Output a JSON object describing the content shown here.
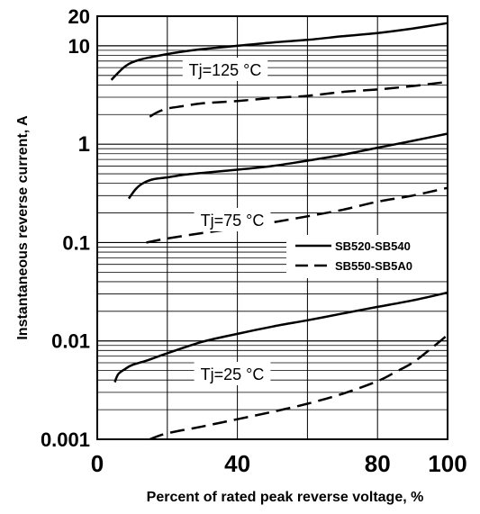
{
  "chart_data": {
    "type": "line",
    "title": "",
    "xlabel": "Percent of rated peak reverse voltage, %",
    "ylabel": "Instantaneous reverse current, A",
    "xlim": [
      0,
      100
    ],
    "ylim": [
      0.001,
      20
    ],
    "yscale": "log",
    "grid": true,
    "legend_position": "right-middle",
    "x_ticks": [
      "0",
      "40",
      "80",
      "100"
    ],
    "y_ticks": [
      "0.001",
      "0.01",
      "0.1",
      "1",
      "10",
      "20"
    ],
    "legend": [
      {
        "name": "SB520-SB540",
        "style": "solid"
      },
      {
        "name": "SB550-SB5A0",
        "style": "dashed"
      }
    ],
    "annotations": [
      "Tj=125 °C",
      "Tj=75 °C",
      "Tj=25 °C"
    ],
    "series": [
      {
        "group": "Tj=125 °C",
        "style": "solid",
        "x": [
          4,
          8,
          12,
          18,
          25,
          32,
          40,
          50,
          60,
          70,
          80,
          90,
          100
        ],
        "y": [
          4.5,
          6.2,
          7.2,
          8.0,
          8.8,
          9.4,
          10.0,
          10.8,
          11.5,
          12.5,
          13.5,
          15.0,
          17.0
        ]
      },
      {
        "group": "Tj=125 °C",
        "style": "dashed",
        "x": [
          15,
          17,
          20,
          25,
          30,
          40,
          50,
          60,
          70,
          80,
          90,
          100
        ],
        "y": [
          1.9,
          2.1,
          2.3,
          2.45,
          2.6,
          2.75,
          2.95,
          3.1,
          3.4,
          3.6,
          3.9,
          4.3
        ]
      },
      {
        "group": "Tj=75 °C",
        "style": "solid",
        "x": [
          9,
          11,
          13,
          16,
          20,
          25,
          30,
          40,
          50,
          60,
          70,
          80,
          90,
          100
        ],
        "y": [
          0.28,
          0.35,
          0.4,
          0.44,
          0.46,
          0.49,
          0.51,
          0.55,
          0.6,
          0.68,
          0.78,
          0.92,
          1.08,
          1.28
        ]
      },
      {
        "group": "Tj=75 °C",
        "style": "dashed",
        "x": [
          14,
          20,
          30,
          40,
          50,
          60,
          70,
          80,
          90,
          100
        ],
        "y": [
          0.1,
          0.11,
          0.125,
          0.14,
          0.16,
          0.185,
          0.215,
          0.26,
          0.3,
          0.36
        ]
      },
      {
        "group": "Tj=25 °C",
        "style": "solid",
        "x": [
          5,
          6,
          8,
          10,
          14,
          20,
          30,
          40,
          50,
          60,
          70,
          80,
          90,
          100
        ],
        "y": [
          0.0038,
          0.0046,
          0.0052,
          0.0057,
          0.0063,
          0.0075,
          0.0098,
          0.0118,
          0.014,
          0.0162,
          0.019,
          0.0222,
          0.0258,
          0.031
        ]
      },
      {
        "group": "Tj=25 °C",
        "style": "dashed",
        "x": [
          15,
          20,
          30,
          40,
          50,
          60,
          70,
          80,
          85,
          90,
          95,
          100
        ],
        "y": [
          0.001,
          0.00115,
          0.00135,
          0.0016,
          0.0019,
          0.0023,
          0.0029,
          0.0039,
          0.0048,
          0.006,
          0.0082,
          0.0115
        ]
      }
    ]
  }
}
